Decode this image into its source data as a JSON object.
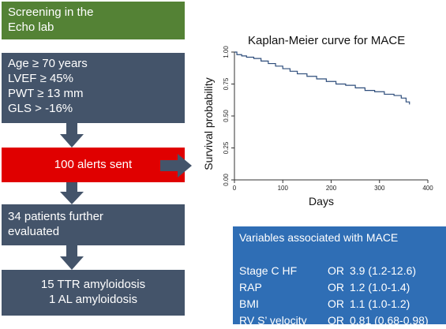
{
  "flow": {
    "screening": [
      "Screening in the",
      "Echo lab"
    ],
    "criteria": [
      "Age ≥ 70 years",
      "LVEF ≥ 45%",
      "PWT ≥ 13 mm",
      "GLS > -16%"
    ],
    "alerts": "100 alerts sent",
    "patients": [
      "34 patients further",
      "evaluated"
    ],
    "result": [
      "15 TTR amyloidosis",
      "1 AL amyloidosis"
    ]
  },
  "colors": {
    "green": "#548235",
    "slate": "#44546a",
    "red": "#e00000",
    "blue": "#2f6eb5",
    "curve": "#2e4d7b"
  },
  "variables": {
    "title": "Variables associated with MACE",
    "rows": [
      {
        "name": "Stage C HF",
        "or": "OR",
        "value": "3.9 (1.2-12.6)"
      },
      {
        "name": "RAP",
        "or": "OR",
        "value": "1.2 (1.0-1.4)"
      },
      {
        "name": "BMI",
        "or": "OR",
        "value": "1.1 (1.0-1.2)"
      },
      {
        "name": "RV S’ velocity",
        "or": "OR",
        "value": "0.81 (0.68-0.98)"
      }
    ]
  },
  "chart_data": {
    "type": "line",
    "title": "Kaplan-Meier curve for MACE",
    "xlabel": "Days",
    "ylabel": "Survival probability",
    "xlim": [
      0,
      400
    ],
    "ylim": [
      0,
      1
    ],
    "xticks": [
      "0",
      "100",
      "200",
      "300",
      "400"
    ],
    "yticks": [
      "0.00",
      "0.25",
      "0.50",
      "0.75",
      "1.00"
    ],
    "grid": false,
    "series": [
      {
        "x": [
          0,
          5,
          15,
          25,
          40,
          55,
          70,
          85,
          100,
          115,
          130,
          150,
          170,
          190,
          210,
          230,
          250,
          270,
          290,
          310,
          330,
          345,
          355,
          362
        ],
        "y": [
          1.0,
          0.98,
          0.97,
          0.96,
          0.95,
          0.93,
          0.91,
          0.89,
          0.87,
          0.85,
          0.83,
          0.81,
          0.79,
          0.77,
          0.75,
          0.74,
          0.72,
          0.7,
          0.69,
          0.67,
          0.66,
          0.64,
          0.61,
          0.59
        ]
      }
    ]
  }
}
